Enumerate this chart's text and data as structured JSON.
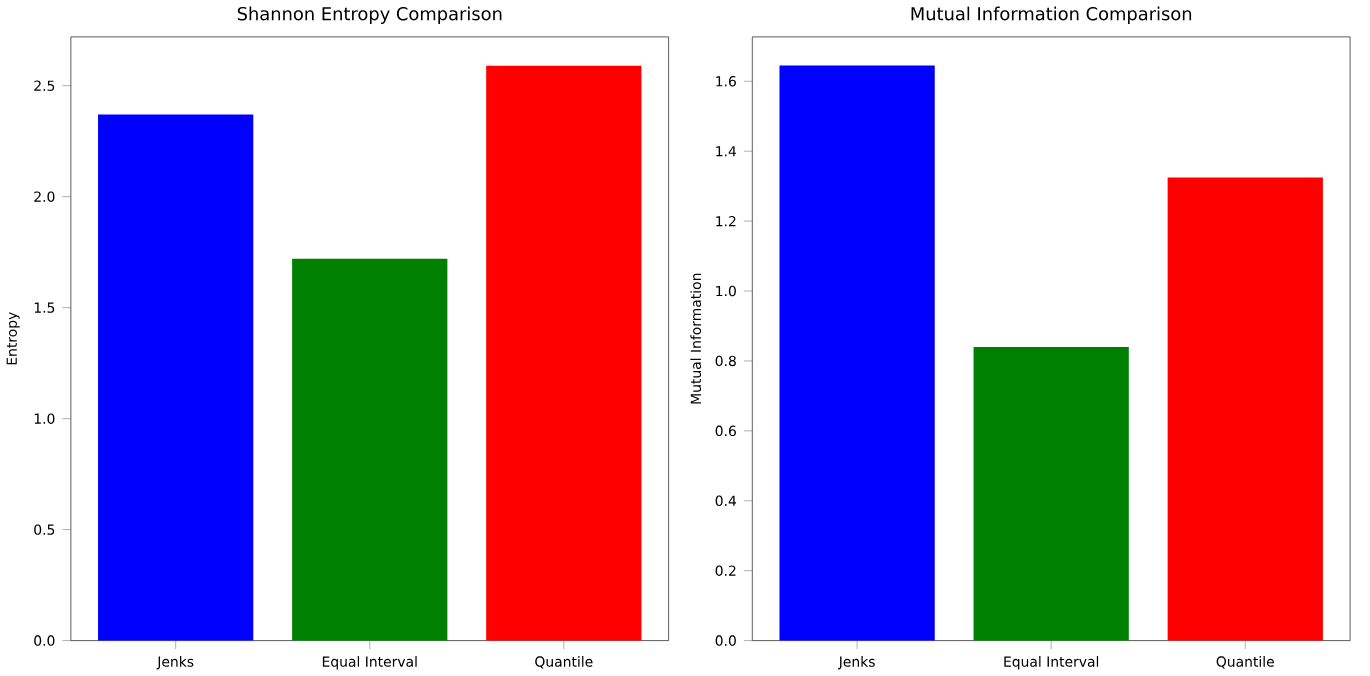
{
  "chart_data": [
    {
      "type": "bar",
      "title": "Shannon Entropy Comparison",
      "ylabel": "Entropy",
      "categories": [
        "Jenks",
        "Equal Interval",
        "Quantile"
      ],
      "values": [
        2.37,
        1.72,
        2.59
      ],
      "colors": [
        "#0000ff",
        "#008000",
        "#ff0000"
      ],
      "ylim": [
        0,
        2.72
      ],
      "yticks": [
        {
          "value": 0,
          "label": "0.0"
        },
        {
          "value": 0.5,
          "label": "0.5"
        },
        {
          "value": 1,
          "label": "1.0"
        },
        {
          "value": 1.5,
          "label": "1.5"
        },
        {
          "value": 2,
          "label": "2.0"
        },
        {
          "value": 2.5,
          "label": "2.5"
        }
      ]
    },
    {
      "type": "bar",
      "title": "Mutual Information Comparison",
      "ylabel": "Mutual Information",
      "categories": [
        "Jenks",
        "Equal Interval",
        "Quantile"
      ],
      "values": [
        1.645,
        0.84,
        1.325
      ],
      "colors": [
        "#0000ff",
        "#008000",
        "#ff0000"
      ],
      "ylim": [
        0,
        1.727
      ],
      "yticks": [
        {
          "value": 0,
          "label": "0.0"
        },
        {
          "value": 0.2,
          "label": "0.2"
        },
        {
          "value": 0.4,
          "label": "0.4"
        },
        {
          "value": 0.6,
          "label": "0.6"
        },
        {
          "value": 0.8,
          "label": "0.8"
        },
        {
          "value": 1,
          "label": "1.0"
        },
        {
          "value": 1.2,
          "label": "1.2"
        },
        {
          "value": 1.4,
          "label": "1.4"
        },
        {
          "value": 1.6,
          "label": "1.6"
        }
      ]
    }
  ]
}
